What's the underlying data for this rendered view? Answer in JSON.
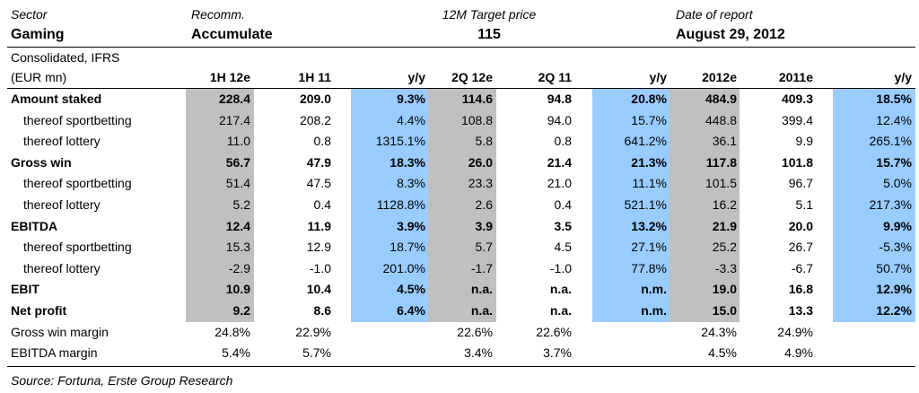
{
  "header": {
    "sector_label": "Sector",
    "sector_value": "Gaming",
    "recomm_label": "Recomm.",
    "recomm_value": "Accumulate",
    "target_label": "12M Target price",
    "target_value": "115",
    "date_label": "Date of report",
    "date_value": "August 29, 2012"
  },
  "table": {
    "subhead_line1": "Consolidated, IFRS",
    "subhead_line2": "(EUR mn)",
    "columns": [
      "1H 12e",
      "1H 11",
      "y/y",
      "2Q 12e",
      "2Q 11",
      "y/y",
      "2012e",
      "2011e",
      "y/y"
    ],
    "rows": [
      {
        "label": "Amount staked",
        "bold": true,
        "cells": [
          "228.4",
          "209.0",
          "9.3%",
          "114.6",
          "94.8",
          "20.8%",
          "484.9",
          "409.3",
          "18.5%"
        ]
      },
      {
        "label": "thereof sportbetting",
        "bold": false,
        "cells": [
          "217.4",
          "208.2",
          "4.4%",
          "108.8",
          "94.0",
          "15.7%",
          "448.8",
          "399.4",
          "12.4%"
        ]
      },
      {
        "label": "thereof lottery",
        "bold": false,
        "cells": [
          "11.0",
          "0.8",
          "1315.1%",
          "5.8",
          "0.8",
          "641.2%",
          "36.1",
          "9.9",
          "265.1%"
        ]
      },
      {
        "label": "Gross win",
        "bold": true,
        "cells": [
          "56.7",
          "47.9",
          "18.3%",
          "26.0",
          "21.4",
          "21.3%",
          "117.8",
          "101.8",
          "15.7%"
        ]
      },
      {
        "label": "thereof sportbetting",
        "bold": false,
        "cells": [
          "51.4",
          "47.5",
          "8.3%",
          "23.3",
          "21.0",
          "11.1%",
          "101.5",
          "96.7",
          "5.0%"
        ]
      },
      {
        "label": "thereof lottery",
        "bold": false,
        "cells": [
          "5.2",
          "0.4",
          "1128.8%",
          "2.6",
          "0.4",
          "521.1%",
          "16.2",
          "5.1",
          "217.3%"
        ]
      },
      {
        "label": "EBITDA",
        "bold": true,
        "cells": [
          "12.4",
          "11.9",
          "3.9%",
          "3.9",
          "3.5",
          "13.2%",
          "21.9",
          "20.0",
          "9.9%"
        ]
      },
      {
        "label": "thereof sportbetting",
        "bold": false,
        "cells": [
          "15.3",
          "12.9",
          "18.7%",
          "5.7",
          "4.5",
          "27.1%",
          "25.2",
          "26.7",
          "-5.3%"
        ]
      },
      {
        "label": "thereof lottery",
        "bold": false,
        "cells": [
          "-2.9",
          "-1.0",
          "201.0%",
          "-1.7",
          "-1.0",
          "77.8%",
          "-3.3",
          "-6.7",
          "50.7%"
        ]
      },
      {
        "label": "EBIT",
        "bold": true,
        "cells": [
          "10.9",
          "10.4",
          "4.5%",
          "n.a.",
          "n.a.",
          "n.m.",
          "19.0",
          "16.8",
          "12.9%"
        ]
      },
      {
        "label": "Net profit",
        "bold": true,
        "cells": [
          "9.2",
          "8.6",
          "6.4%",
          "n.a.",
          "n.a.",
          "n.m.",
          "15.0",
          "13.3",
          "12.2%"
        ]
      },
      {
        "label": "Gross win margin",
        "bold": false,
        "cells": [
          "24.8%",
          "22.9%",
          "",
          "22.6%",
          "22.6%",
          "",
          "24.3%",
          "24.9%",
          ""
        ]
      },
      {
        "label": "EBITDA margin",
        "bold": false,
        "cells": [
          "5.4%",
          "5.7%",
          "",
          "3.4%",
          "3.7%",
          "",
          "4.5%",
          "4.9%",
          ""
        ]
      }
    ]
  },
  "footer": {
    "source": "Source: Fortuna, Erste Group Research"
  },
  "colors": {
    "grey_column": "#c0c0c0",
    "blue_column": "#99ccff"
  }
}
